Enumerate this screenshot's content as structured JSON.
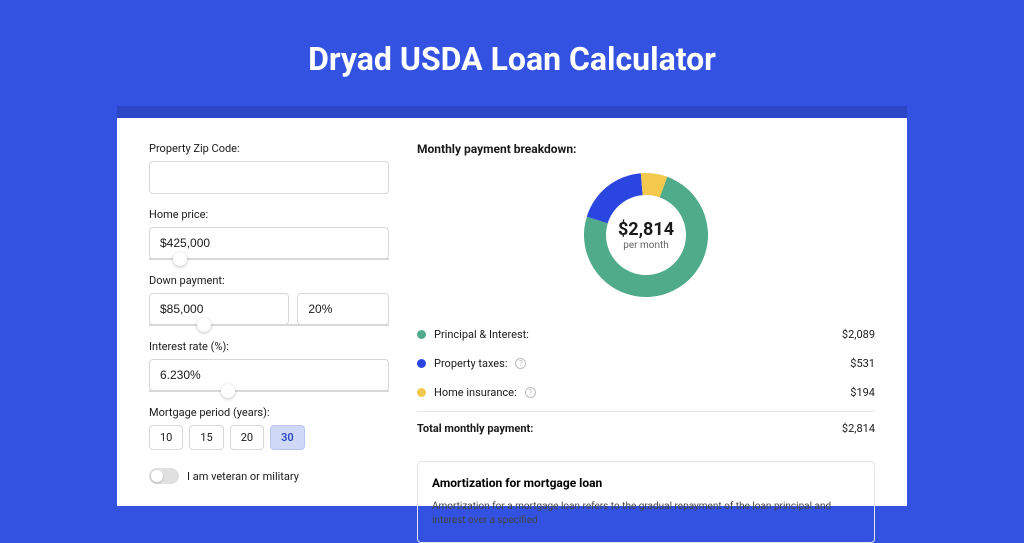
{
  "header": {
    "title": "Dryad USDA Loan Calculator"
  },
  "form": {
    "zip": {
      "label": "Property Zip Code:",
      "value": ""
    },
    "price": {
      "label": "Home price:",
      "value": "$425,000",
      "slider_pct": 10
    },
    "down": {
      "label": "Down payment:",
      "amount": "$85,000",
      "pct": "20%",
      "slider_pct": 20
    },
    "rate": {
      "label": "Interest rate (%):",
      "value": "6.230%",
      "slider_pct": 30
    },
    "period": {
      "label": "Mortgage period (years):",
      "options": [
        "10",
        "15",
        "20",
        "30"
      ],
      "selected": "30"
    },
    "veteran": {
      "label": "I am veteran or military",
      "on": false
    }
  },
  "chart": {
    "title": "Monthly payment breakdown:",
    "center_value": "$2,814",
    "center_label": "per month",
    "type": "donut",
    "donut_size": 130,
    "inner_radius": 40,
    "outer_radius": 62,
    "slices": [
      {
        "key": "principal_interest",
        "fraction": 0.742,
        "color": "#4fab8a"
      },
      {
        "key": "property_taxes",
        "fraction": 0.189,
        "color": "#2b46e0"
      },
      {
        "key": "home_insurance",
        "fraction": 0.069,
        "color": "#f2c94c"
      }
    ],
    "rows": [
      {
        "dot": "#4fab8a",
        "label": "Principal & Interest:",
        "info": false,
        "value": "$2,089"
      },
      {
        "dot": "#2b46e0",
        "label": "Property taxes:",
        "info": true,
        "value": "$531"
      },
      {
        "dot": "#f2c94c",
        "label": "Home insurance:",
        "info": true,
        "value": "$194"
      }
    ],
    "total": {
      "label": "Total monthly payment:",
      "value": "$2,814"
    }
  },
  "amortization": {
    "title": "Amortization for mortgage loan",
    "body": "Amortization for a mortgage loan refers to the gradual repayment of the loan principal and interest over a specified"
  },
  "colors": {
    "page_bg": "#3452e1",
    "panel_border_top": "#2b46c7",
    "text": "#1a1a1a"
  }
}
